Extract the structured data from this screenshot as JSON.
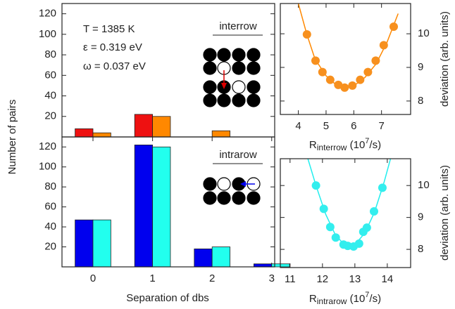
{
  "chart_data": [
    {
      "type": "bar",
      "ylabel": "Number of pairs",
      "annotations": [
        "T = 1385 K",
        "ε = 0.319 eV",
        "ω = 0.037 eV",
        "interrow"
      ],
      "x": [
        0,
        1,
        2,
        3
      ],
      "xlim": [
        -0.52,
        3.05
      ],
      "ylim": [
        0,
        130
      ],
      "yticks": [
        20,
        40,
        60,
        80,
        100,
        120
      ],
      "series": [
        {
          "color": "#ee1111",
          "values": [
            8,
            22,
            0,
            0
          ]
        },
        {
          "color": "#ff8800",
          "values": [
            4,
            20,
            6,
            0
          ]
        }
      ]
    },
    {
      "type": "bar",
      "xlabel": "Separation of dbs",
      "annotations": [
        "intrarow"
      ],
      "x": [
        0,
        1,
        2,
        3
      ],
      "xlim": [
        -0.52,
        3.05
      ],
      "xticks": [
        0,
        1,
        2,
        3
      ],
      "ylim": [
        0,
        130
      ],
      "yticks": [
        20,
        40,
        60,
        80,
        100,
        120
      ],
      "series": [
        {
          "color": "#0000ee",
          "values": [
            47,
            122,
            18,
            3
          ]
        },
        {
          "color": "#22ffee",
          "values": [
            47,
            120,
            20,
            3
          ]
        }
      ]
    },
    {
      "type": "scatter",
      "ylabel": "deviation (arb. units)",
      "xlabel": {
        "base": "R",
        "sub": "interrow",
        "unit_pre": " (10",
        "sup": "7",
        "unit_post": "/s)"
      },
      "xlim": [
        3.35,
        8.05
      ],
      "xticks": [
        4,
        5,
        6,
        7
      ],
      "ylim": [
        7.6,
        10.9
      ],
      "yticks": [
        8,
        9,
        10
      ],
      "series": [
        {
          "mode": "line",
          "color": "#ff8800",
          "x": [
            4.0,
            4.3,
            4.6,
            5.0,
            5.4,
            5.7,
            6.0,
            6.4,
            6.8,
            7.2,
            7.6
          ],
          "values": [
            10.9,
            10.0,
            9.25,
            8.75,
            8.45,
            8.4,
            8.45,
            8.7,
            9.1,
            9.75,
            10.6
          ]
        },
        {
          "mode": "markers",
          "color": "#f7901e",
          "x": [
            4.31,
            4.62,
            4.87,
            5.15,
            5.44,
            5.67,
            5.95,
            6.23,
            6.51,
            6.79,
            7.08,
            7.44
          ],
          "values": [
            9.98,
            9.2,
            8.86,
            8.63,
            8.48,
            8.4,
            8.46,
            8.63,
            8.86,
            9.2,
            9.66,
            10.21
          ]
        }
      ]
    },
    {
      "type": "scatter",
      "ylabel": "deviation (arb. units)",
      "xlabel": {
        "base": "R",
        "sub": "intrarow",
        "unit_pre": " (10",
        "sup": "7",
        "unit_post": "/s)"
      },
      "xlim": [
        10.7,
        14.72
      ],
      "xticks": [
        11,
        12,
        13,
        14
      ],
      "ylim": [
        7.43,
        10.84
      ],
      "yticks": [
        8,
        9,
        10
      ],
      "series": [
        {
          "mode": "line",
          "color": "#22eeee",
          "x": [
            11.55,
            11.8,
            12.1,
            12.4,
            12.7,
            13.0,
            13.3,
            13.6,
            13.9,
            14.1
          ],
          "values": [
            10.84,
            10.0,
            9.1,
            8.45,
            8.12,
            8.15,
            8.5,
            9.15,
            10.1,
            10.84
          ]
        },
        {
          "mode": "markers",
          "color": "#33eeee",
          "x": [
            11.8,
            12.04,
            12.24,
            12.41,
            12.65,
            12.78,
            12.96,
            13.13,
            13.26,
            13.37,
            13.59,
            13.85
          ],
          "values": [
            10,
            9.27,
            8.7,
            8.37,
            8.15,
            8.11,
            8.09,
            8.18,
            8.55,
            8.68,
            9.19,
            9.93
          ]
        }
      ]
    }
  ]
}
